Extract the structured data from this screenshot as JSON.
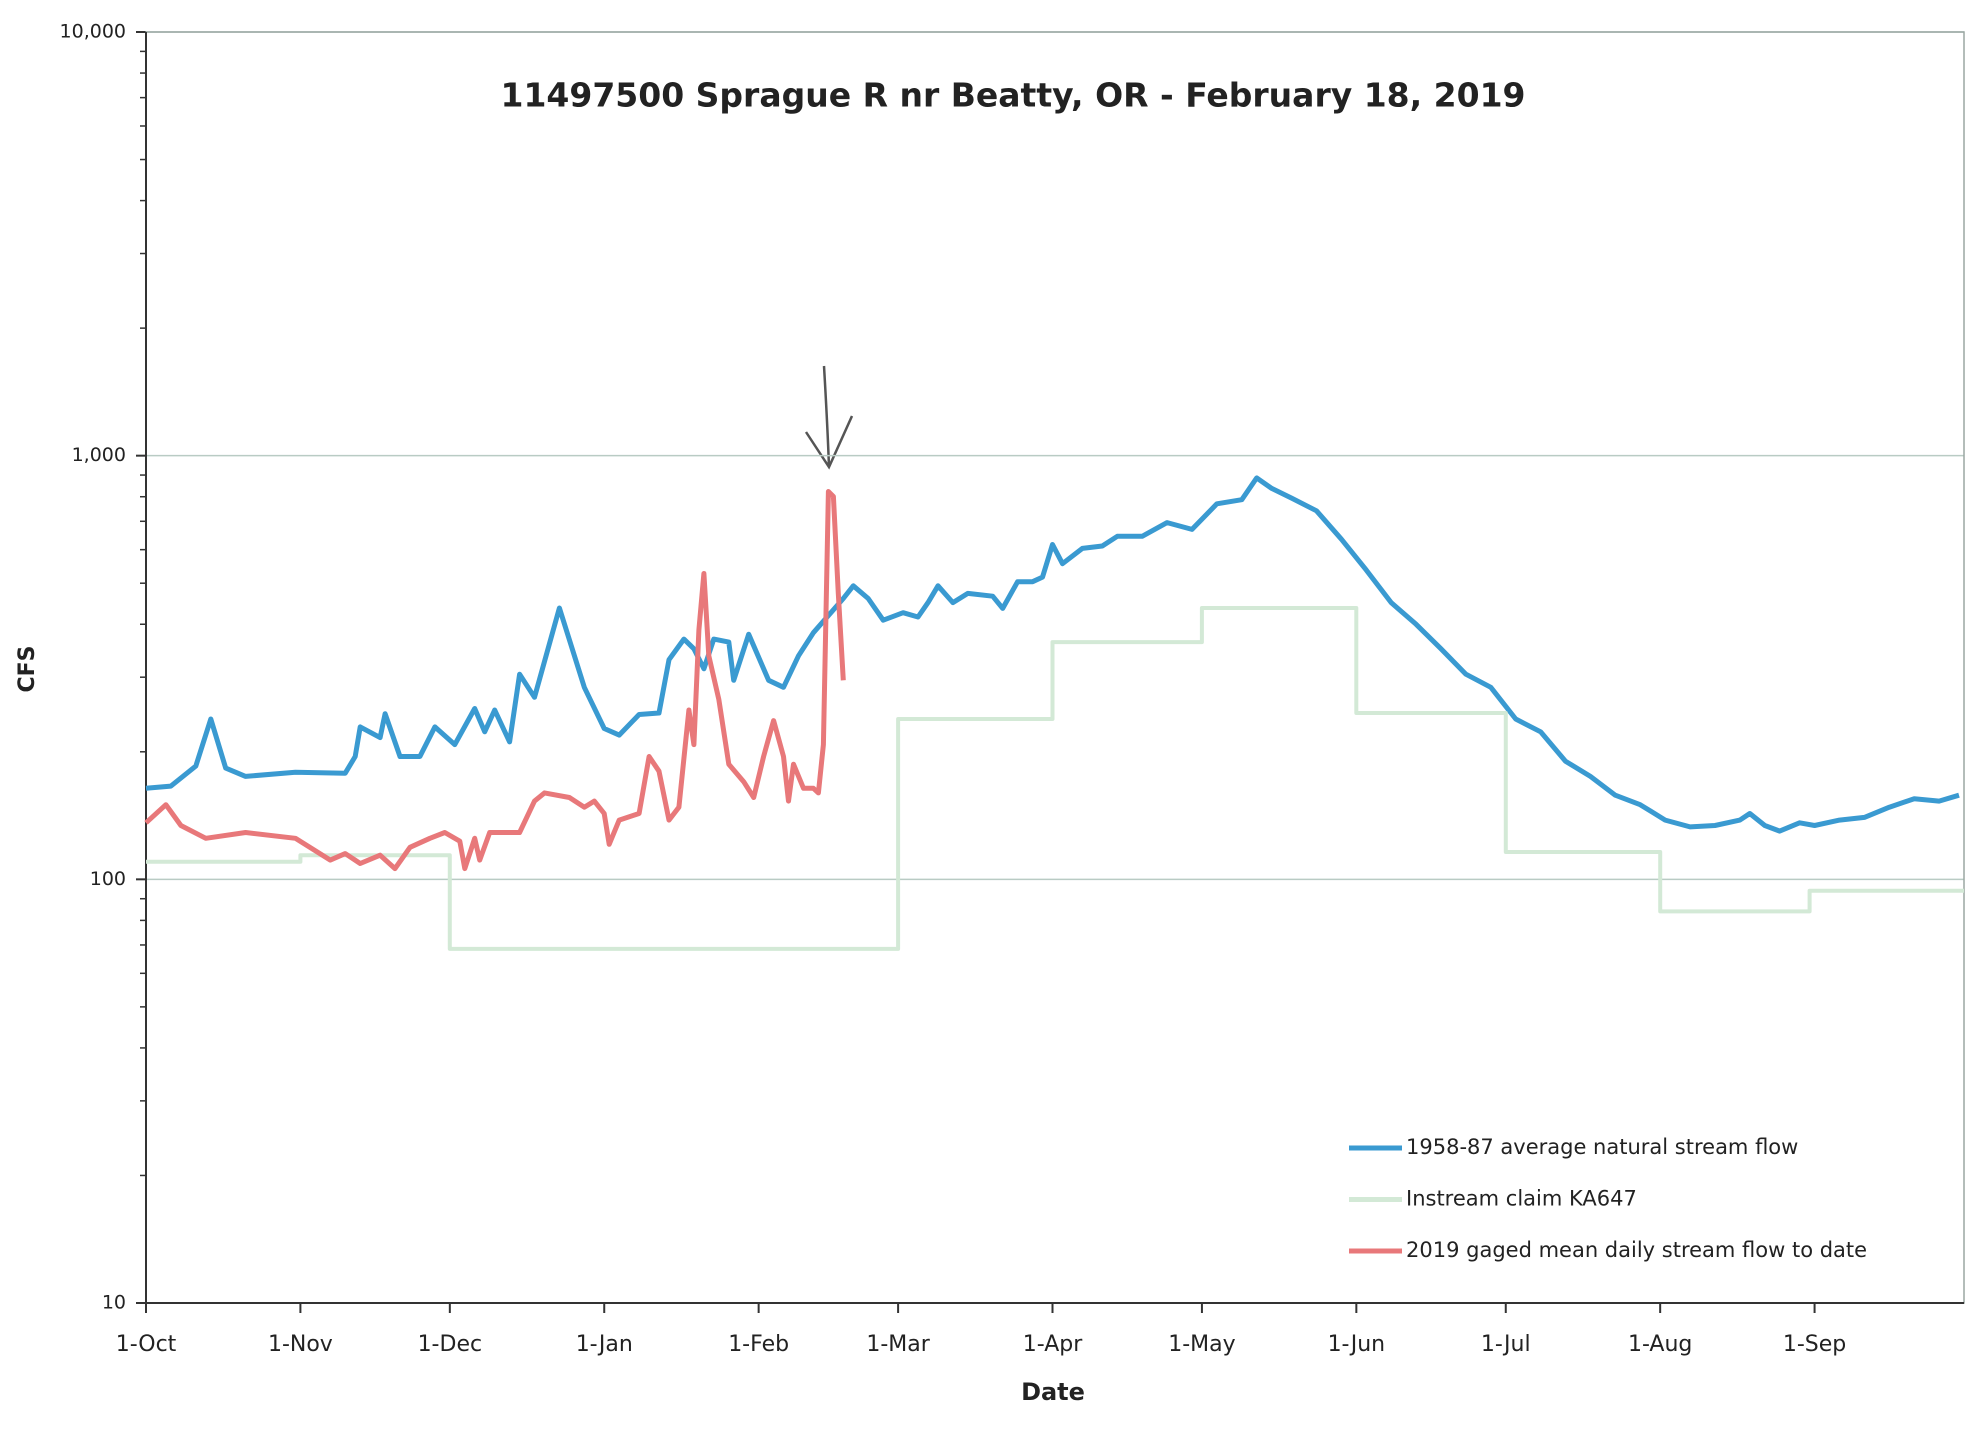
{
  "chart_data": {
    "type": "line",
    "title": "11497500 Sprague R nr Beatty, OR -  February 18, 2019",
    "xlabel": "Date",
    "ylabel": "CFS",
    "log_y": true,
    "grid": true,
    "legend": "lower right",
    "xlim": [
      0,
      365
    ],
    "ylim": [
      10,
      10000
    ],
    "xticks": [
      {
        "value": 0,
        "label": "1-Oct"
      },
      {
        "value": 31,
        "label": "1-Nov"
      },
      {
        "value": 61,
        "label": "1-Dec"
      },
      {
        "value": 92,
        "label": "1-Jan"
      },
      {
        "value": 123,
        "label": "1-Feb"
      },
      {
        "value": 151,
        "label": "1-Mar"
      },
      {
        "value": 182,
        "label": "1-Apr"
      },
      {
        "value": 212,
        "label": "1-May"
      },
      {
        "value": 243,
        "label": "1-Jun"
      },
      {
        "value": 273,
        "label": "1-Jul"
      },
      {
        "value": 304,
        "label": "1-Aug"
      },
      {
        "value": 335,
        "label": "1-Sep"
      }
    ],
    "yticks": [
      10,
      100,
      {
        "value": 1000,
        "label": "1,000"
      },
      {
        "value": 10000,
        "label": "10,000"
      }
    ],
    "series": [
      {
        "name": "1958-87 average natural stream flow",
        "color": "#3a9ad1",
        "x": [
          0,
          5,
          10,
          13,
          16,
          20,
          30,
          40,
          42,
          43,
          47,
          48,
          51,
          55,
          58,
          62,
          66,
          68,
          70,
          73,
          75,
          78,
          83,
          88,
          92,
          95,
          99,
          103,
          105,
          108,
          110,
          112,
          114,
          117,
          118,
          121,
          125,
          128,
          131,
          134,
          140,
          142,
          145,
          148,
          152,
          155,
          157,
          159,
          162,
          165,
          170,
          172,
          175,
          178,
          180,
          182,
          184,
          188,
          192,
          195,
          200,
          205,
          210,
          215,
          220,
          223,
          226,
          230,
          235,
          240,
          245,
          250,
          255,
          260,
          265,
          270,
          275,
          280,
          285,
          290,
          295,
          300,
          305,
          310,
          315,
          320,
          322,
          325,
          328,
          332,
          335,
          340,
          345,
          350,
          355,
          360,
          364
        ],
        "values": [
          164,
          166,
          185,
          239,
          183,
          175,
          179,
          178,
          195,
          229,
          216,
          246,
          195,
          195,
          229,
          208,
          253,
          223,
          251,
          211,
          305,
          269,
          437,
          284,
          227,
          219,
          245,
          247,
          330,
          369,
          350,
          314,
          369,
          363,
          295,
          379,
          295,
          284,
          337,
          382,
          460,
          493,
          460,
          409,
          426,
          416,
          450,
          493,
          450,
          473,
          466,
          436,
          504,
          504,
          517,
          617,
          556,
          604,
          612,
          645,
          645,
          695,
          670,
          770,
          787,
          886,
          837,
          794,
          741,
          635,
          537,
          450,
          400,
          350,
          305,
          284,
          239,
          223,
          190,
          175,
          158,
          150,
          138,
          133,
          134,
          138,
          143,
          134,
          130,
          136,
          134,
          138,
          140,
          148,
          155,
          153,
          158
        ]
      },
      {
        "name": "Instream claim KA647",
        "color": "#d3e9d6",
        "x": [
          0,
          31,
          31,
          61,
          61,
          151,
          151,
          182,
          182,
          212,
          212,
          243,
          243,
          273,
          273,
          304,
          304,
          334,
          334,
          365
        ],
        "values": [
          110,
          110,
          114,
          114,
          68.5,
          68.5,
          239,
          239,
          363,
          363,
          437,
          437,
          247,
          247,
          116,
          116,
          84,
          84,
          94,
          94
        ]
      },
      {
        "name": "2019 gaged mean daily stream flow to date",
        "color": "#e8787a",
        "x": [
          0,
          4,
          7,
          12,
          20,
          30,
          37,
          40,
          43,
          47,
          50,
          53,
          57,
          60,
          63,
          64,
          66,
          67,
          69,
          75,
          78,
          80,
          85,
          88,
          90,
          92,
          93,
          95,
          99,
          101,
          103,
          105,
          107,
          109,
          110,
          111,
          112,
          113,
          115,
          117,
          120,
          122,
          124,
          126,
          128,
          129,
          130,
          132,
          134,
          135,
          136,
          137,
          138,
          139,
          140
        ],
        "values": [
          136,
          150,
          134,
          125,
          129,
          125,
          111,
          115,
          109,
          114,
          106,
          119,
          125,
          129,
          123,
          106,
          125,
          111,
          129,
          129,
          153,
          160,
          156,
          148,
          153,
          143,
          121,
          138,
          143,
          195,
          180,
          138,
          148,
          251,
          208,
          388,
          527,
          337,
          266,
          187,
          170,
          156,
          195,
          237,
          195,
          153,
          187,
          164,
          164,
          160,
          208,
          823,
          801,
          473,
          295
        ]
      }
    ]
  }
}
